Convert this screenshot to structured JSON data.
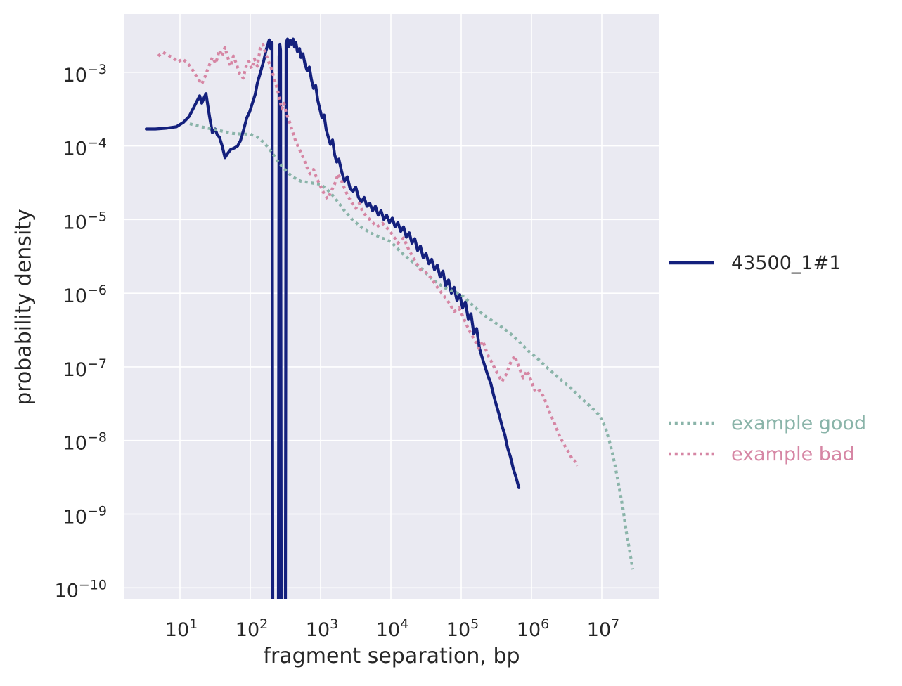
{
  "figure": {
    "background": "#ffffff",
    "plot_background": "#eaeaf2",
    "grid_color": "#ffffff",
    "text_color": "#262626"
  },
  "chart_data": {
    "type": "line",
    "title": "",
    "xlabel": "fragment separation, bp",
    "ylabel": "probability density",
    "x_scale": "log",
    "y_scale": "log",
    "grid": true,
    "legend_position": "right-outside",
    "x_tick_exponents": [
      1,
      2,
      3,
      4,
      5,
      6,
      7
    ],
    "y_tick_exponents": [
      -3,
      -4,
      -5,
      -6,
      -7,
      -8,
      -9,
      -10
    ],
    "x_log_range": [
      0.21,
      7.81
    ],
    "y_log_range": [
      -10.15,
      -2.21
    ],
    "series": [
      {
        "name": "43500_1#1",
        "color": "#14207d",
        "legend_label_color": "#262626",
        "style": "solid",
        "line_width": 4.2,
        "log_points": [
          [
            0.52,
            -3.77
          ],
          [
            0.65,
            -3.77
          ],
          [
            0.8,
            -3.76
          ],
          [
            0.95,
            -3.74
          ],
          [
            1.05,
            -3.68
          ],
          [
            1.13,
            -3.6
          ],
          [
            1.2,
            -3.47
          ],
          [
            1.28,
            -3.32
          ],
          [
            1.31,
            -3.42
          ],
          [
            1.34,
            -3.35
          ],
          [
            1.37,
            -3.29
          ],
          [
            1.42,
            -3.6
          ],
          [
            1.46,
            -3.82
          ],
          [
            1.5,
            -3.77
          ],
          [
            1.53,
            -3.85
          ],
          [
            1.56,
            -3.88
          ],
          [
            1.6,
            -4.0
          ],
          [
            1.64,
            -4.16
          ],
          [
            1.68,
            -4.1
          ],
          [
            1.72,
            -4.05
          ],
          [
            1.77,
            -4.03
          ],
          [
            1.82,
            -4.0
          ],
          [
            1.86,
            -3.93
          ],
          [
            1.9,
            -3.8
          ],
          [
            1.95,
            -3.62
          ],
          [
            1.99,
            -3.54
          ],
          [
            2.03,
            -3.42
          ],
          [
            2.07,
            -3.3
          ],
          [
            2.1,
            -3.15
          ],
          [
            2.13,
            -3.05
          ],
          [
            2.16,
            -2.95
          ],
          [
            2.19,
            -2.85
          ],
          [
            2.22,
            -2.72
          ],
          [
            2.25,
            -2.62
          ],
          [
            2.27,
            -2.56
          ],
          [
            2.29,
            -2.68
          ],
          [
            2.31,
            -2.6
          ],
          [
            2.32,
            -10.2
          ],
          [
            2.4,
            -10.2
          ],
          [
            2.41,
            -2.78
          ],
          [
            2.42,
            -2.62
          ],
          [
            2.43,
            -2.7
          ],
          [
            2.44,
            -10.2
          ],
          [
            2.5,
            -10.2
          ],
          [
            2.51,
            -2.6
          ],
          [
            2.53,
            -2.55
          ],
          [
            2.55,
            -2.65
          ],
          [
            2.57,
            -2.57
          ],
          [
            2.59,
            -2.62
          ],
          [
            2.61,
            -2.55
          ],
          [
            2.63,
            -2.66
          ],
          [
            2.65,
            -2.6
          ],
          [
            2.67,
            -2.72
          ],
          [
            2.7,
            -2.68
          ],
          [
            2.72,
            -2.8
          ],
          [
            2.75,
            -2.75
          ],
          [
            2.78,
            -2.9
          ],
          [
            2.81,
            -2.98
          ],
          [
            2.84,
            -2.93
          ],
          [
            2.87,
            -3.1
          ],
          [
            2.9,
            -3.22
          ],
          [
            2.93,
            -3.18
          ],
          [
            2.96,
            -3.38
          ],
          [
            2.99,
            -3.5
          ],
          [
            3.02,
            -3.62
          ],
          [
            3.05,
            -3.58
          ],
          [
            3.08,
            -3.78
          ],
          [
            3.11,
            -3.88
          ],
          [
            3.14,
            -3.98
          ],
          [
            3.17,
            -3.92
          ],
          [
            3.2,
            -4.12
          ],
          [
            3.23,
            -4.22
          ],
          [
            3.26,
            -4.18
          ],
          [
            3.3,
            -4.35
          ],
          [
            3.34,
            -4.48
          ],
          [
            3.38,
            -4.42
          ],
          [
            3.42,
            -4.58
          ],
          [
            3.46,
            -4.62
          ],
          [
            3.5,
            -4.56
          ],
          [
            3.54,
            -4.7
          ],
          [
            3.58,
            -4.76
          ],
          [
            3.62,
            -4.7
          ],
          [
            3.66,
            -4.82
          ],
          [
            3.7,
            -4.78
          ],
          [
            3.74,
            -4.88
          ],
          [
            3.78,
            -4.82
          ],
          [
            3.82,
            -4.94
          ],
          [
            3.86,
            -4.88
          ],
          [
            3.9,
            -5.0
          ],
          [
            3.94,
            -4.94
          ],
          [
            3.98,
            -5.04
          ],
          [
            4.02,
            -4.98
          ],
          [
            4.06,
            -5.1
          ],
          [
            4.1,
            -5.04
          ],
          [
            4.14,
            -5.16
          ],
          [
            4.18,
            -5.1
          ],
          [
            4.22,
            -5.24
          ],
          [
            4.26,
            -5.18
          ],
          [
            4.3,
            -5.32
          ],
          [
            4.34,
            -5.26
          ],
          [
            4.38,
            -5.42
          ],
          [
            4.42,
            -5.36
          ],
          [
            4.46,
            -5.52
          ],
          [
            4.5,
            -5.46
          ],
          [
            4.54,
            -5.6
          ],
          [
            4.58,
            -5.54
          ],
          [
            4.62,
            -5.68
          ],
          [
            4.66,
            -5.62
          ],
          [
            4.7,
            -5.78
          ],
          [
            4.74,
            -5.7
          ],
          [
            4.78,
            -5.9
          ],
          [
            4.82,
            -5.82
          ],
          [
            4.86,
            -6.0
          ],
          [
            4.9,
            -5.92
          ],
          [
            4.94,
            -6.1
          ],
          [
            4.98,
            -6.02
          ],
          [
            5.02,
            -6.2
          ],
          [
            5.06,
            -6.12
          ],
          [
            5.1,
            -6.35
          ],
          [
            5.14,
            -6.28
          ],
          [
            5.18,
            -6.55
          ],
          [
            5.22,
            -6.48
          ],
          [
            5.26,
            -6.75
          ],
          [
            5.3,
            -6.88
          ],
          [
            5.34,
            -7.0
          ],
          [
            5.38,
            -7.12
          ],
          [
            5.42,
            -7.22
          ],
          [
            5.46,
            -7.38
          ],
          [
            5.5,
            -7.52
          ],
          [
            5.54,
            -7.65
          ],
          [
            5.58,
            -7.8
          ],
          [
            5.62,
            -7.92
          ],
          [
            5.66,
            -8.1
          ],
          [
            5.7,
            -8.22
          ],
          [
            5.74,
            -8.38
          ],
          [
            5.78,
            -8.5
          ],
          [
            5.82,
            -8.64
          ]
        ]
      },
      {
        "name": "example good",
        "color": "#8ab4a9",
        "legend_label_color": "#8ab4a9",
        "style": "dotted",
        "line_width": 4.2,
        "log_points": [
          [
            1.14,
            -3.7
          ],
          [
            1.3,
            -3.74
          ],
          [
            1.45,
            -3.77
          ],
          [
            1.6,
            -3.8
          ],
          [
            1.75,
            -3.83
          ],
          [
            1.88,
            -3.84
          ],
          [
            2.0,
            -3.84
          ],
          [
            2.1,
            -3.88
          ],
          [
            2.2,
            -3.96
          ],
          [
            2.3,
            -4.08
          ],
          [
            2.4,
            -4.22
          ],
          [
            2.5,
            -4.33
          ],
          [
            2.6,
            -4.42
          ],
          [
            2.72,
            -4.48
          ],
          [
            2.85,
            -4.5
          ],
          [
            3.0,
            -4.52
          ],
          [
            3.1,
            -4.6
          ],
          [
            3.2,
            -4.7
          ],
          [
            3.34,
            -4.88
          ],
          [
            3.45,
            -5.0
          ],
          [
            3.6,
            -5.12
          ],
          [
            3.75,
            -5.2
          ],
          [
            3.9,
            -5.26
          ],
          [
            4.0,
            -5.3
          ],
          [
            4.15,
            -5.45
          ],
          [
            4.3,
            -5.57
          ],
          [
            4.45,
            -5.68
          ],
          [
            4.6,
            -5.82
          ],
          [
            4.75,
            -5.92
          ],
          [
            4.9,
            -5.98
          ],
          [
            5.0,
            -6.02
          ],
          [
            5.15,
            -6.15
          ],
          [
            5.3,
            -6.28
          ],
          [
            5.45,
            -6.38
          ],
          [
            5.55,
            -6.44
          ],
          [
            5.7,
            -6.55
          ],
          [
            5.85,
            -6.68
          ],
          [
            5.95,
            -6.78
          ],
          [
            6.1,
            -6.9
          ],
          [
            6.21,
            -7.0
          ],
          [
            6.35,
            -7.12
          ],
          [
            6.45,
            -7.2
          ],
          [
            6.55,
            -7.28
          ],
          [
            6.7,
            -7.42
          ],
          [
            6.85,
            -7.55
          ],
          [
            6.97,
            -7.66
          ],
          [
            7.05,
            -7.82
          ],
          [
            7.12,
            -8.05
          ],
          [
            7.18,
            -8.3
          ],
          [
            7.24,
            -8.6
          ],
          [
            7.3,
            -8.92
          ],
          [
            7.35,
            -9.25
          ],
          [
            7.4,
            -9.52
          ],
          [
            7.44,
            -9.75
          ]
        ]
      },
      {
        "name": "example bad",
        "color": "#d686a4",
        "legend_label_color": "#d686a4",
        "style": "dotted",
        "line_width": 4.2,
        "log_points": [
          [
            0.69,
            -2.78
          ],
          [
            0.76,
            -2.73
          ],
          [
            0.83,
            -2.77
          ],
          [
            0.9,
            -2.8
          ],
          [
            0.97,
            -2.86
          ],
          [
            1.04,
            -2.82
          ],
          [
            1.11,
            -2.88
          ],
          [
            1.18,
            -2.97
          ],
          [
            1.25,
            -3.08
          ],
          [
            1.31,
            -3.16
          ],
          [
            1.36,
            -3.05
          ],
          [
            1.41,
            -2.92
          ],
          [
            1.46,
            -2.8
          ],
          [
            1.51,
            -2.88
          ],
          [
            1.56,
            -2.7
          ],
          [
            1.6,
            -2.78
          ],
          [
            1.64,
            -2.66
          ],
          [
            1.68,
            -2.8
          ],
          [
            1.72,
            -2.92
          ],
          [
            1.76,
            -2.78
          ],
          [
            1.8,
            -2.88
          ],
          [
            1.85,
            -3.02
          ],
          [
            1.9,
            -3.08
          ],
          [
            1.94,
            -2.92
          ],
          [
            1.98,
            -2.85
          ],
          [
            2.02,
            -2.95
          ],
          [
            2.06,
            -2.82
          ],
          [
            2.1,
            -2.92
          ],
          [
            2.14,
            -2.68
          ],
          [
            2.18,
            -2.62
          ],
          [
            2.21,
            -2.72
          ],
          [
            2.24,
            -2.8
          ],
          [
            2.27,
            -2.88
          ],
          [
            2.3,
            -2.95
          ],
          [
            2.33,
            -3.05
          ],
          [
            2.36,
            -3.15
          ],
          [
            2.39,
            -3.25
          ],
          [
            2.42,
            -3.38
          ],
          [
            2.45,
            -3.5
          ],
          [
            2.48,
            -3.42
          ],
          [
            2.51,
            -3.55
          ],
          [
            2.55,
            -3.65
          ],
          [
            2.6,
            -3.8
          ],
          [
            2.65,
            -3.95
          ],
          [
            2.7,
            -4.05
          ],
          [
            2.75,
            -4.15
          ],
          [
            2.8,
            -4.28
          ],
          [
            2.85,
            -4.38
          ],
          [
            2.9,
            -4.32
          ],
          [
            2.95,
            -4.45
          ],
          [
            3.0,
            -4.55
          ],
          [
            3.05,
            -4.65
          ],
          [
            3.1,
            -4.72
          ],
          [
            3.15,
            -4.62
          ],
          [
            3.2,
            -4.52
          ],
          [
            3.25,
            -4.38
          ],
          [
            3.3,
            -4.48
          ],
          [
            3.35,
            -4.6
          ],
          [
            3.4,
            -4.7
          ],
          [
            3.45,
            -4.78
          ],
          [
            3.5,
            -4.85
          ],
          [
            3.55,
            -4.78
          ],
          [
            3.6,
            -4.9
          ],
          [
            3.65,
            -4.95
          ],
          [
            3.72,
            -5.02
          ],
          [
            3.8,
            -5.1
          ],
          [
            3.88,
            -5.05
          ],
          [
            3.95,
            -5.12
          ],
          [
            4.02,
            -5.2
          ],
          [
            4.1,
            -5.32
          ],
          [
            4.18,
            -5.25
          ],
          [
            4.26,
            -5.42
          ],
          [
            4.34,
            -5.55
          ],
          [
            4.42,
            -5.68
          ],
          [
            4.5,
            -5.72
          ],
          [
            4.58,
            -5.8
          ],
          [
            4.66,
            -5.92
          ],
          [
            4.74,
            -6.02
          ],
          [
            4.82,
            -6.12
          ],
          [
            4.9,
            -6.25
          ],
          [
            4.97,
            -6.2
          ],
          [
            5.04,
            -6.35
          ],
          [
            5.11,
            -6.5
          ],
          [
            5.18,
            -6.62
          ],
          [
            5.25,
            -6.75
          ],
          [
            5.31,
            -6.65
          ],
          [
            5.37,
            -6.82
          ],
          [
            5.44,
            -6.95
          ],
          [
            5.51,
            -7.08
          ],
          [
            5.58,
            -7.2
          ],
          [
            5.64,
            -7.1
          ],
          [
            5.7,
            -6.95
          ],
          [
            5.76,
            -6.85
          ],
          [
            5.82,
            -7.0
          ],
          [
            5.88,
            -7.15
          ],
          [
            5.94,
            -7.05
          ],
          [
            6.0,
            -7.2
          ],
          [
            6.06,
            -7.35
          ],
          [
            6.12,
            -7.32
          ],
          [
            6.18,
            -7.42
          ],
          [
            6.25,
            -7.6
          ],
          [
            6.32,
            -7.75
          ],
          [
            6.39,
            -7.92
          ],
          [
            6.46,
            -8.05
          ],
          [
            6.52,
            -8.15
          ],
          [
            6.58,
            -8.25
          ],
          [
            6.62,
            -8.28
          ],
          [
            6.66,
            -8.34
          ]
        ]
      }
    ]
  }
}
